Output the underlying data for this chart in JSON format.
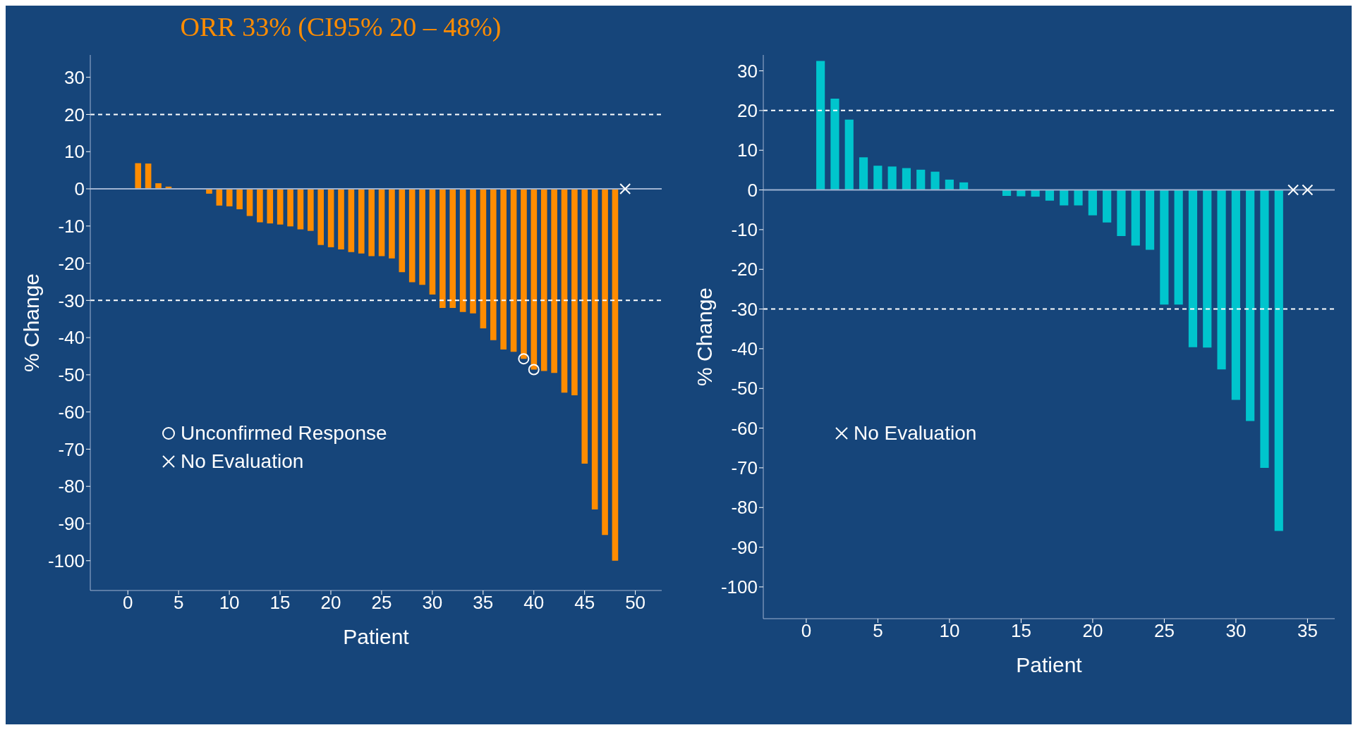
{
  "chart_data": [
    {
      "type": "bar",
      "title": "ORR 33% (CI95% 20 – 48%)",
      "xlabel": "Patient",
      "ylabel": "% Change",
      "legend": "left",
      "grid": false,
      "x": [
        1,
        2,
        3,
        4,
        5,
        6,
        7,
        8,
        9,
        10,
        11,
        12,
        13,
        14,
        15,
        16,
        17,
        18,
        19,
        20,
        21,
        22,
        23,
        24,
        25,
        26,
        27,
        28,
        29,
        30,
        31,
        32,
        33,
        34,
        35,
        36,
        37,
        38,
        39,
        40,
        41,
        42,
        43,
        44,
        45,
        46,
        47,
        48
      ],
      "xlim": [
        -3.7,
        52.6
      ],
      "xticks": [
        0,
        5,
        10,
        15,
        20,
        25,
        30,
        35,
        40,
        45,
        50
      ],
      "ylim": [
        -108,
        36
      ],
      "yticks": [
        -100,
        -90,
        -80,
        -70,
        -60,
        -50,
        -40,
        -30,
        -20,
        -10,
        0,
        10,
        20,
        30
      ],
      "series": [
        {
          "color": "#ff8c00",
          "values": [
            6.9,
            6.8,
            1.5,
            0.6,
            0,
            0,
            0,
            -1.3,
            -4.5,
            -4.7,
            -5.5,
            -7.3,
            -9.0,
            -9.3,
            -9.6,
            -10.1,
            -10.9,
            -11.3,
            -15.1,
            -15.7,
            -16.3,
            -17.0,
            -17.4,
            -18.1,
            -18.1,
            -18.7,
            -22.4,
            -25.1,
            -25.8,
            -28.4,
            -32.0,
            -32.0,
            -33.1,
            -33.5,
            -37.5,
            -40.7,
            -43.2,
            -43.8,
            -45.7,
            -48.6,
            -49.0,
            -49.5,
            -54.8,
            -55.5,
            -73.9,
            -86.2,
            -93.1,
            -100
          ]
        },
        {
          "type": "scatter",
          "name": "Unconfirmed Response",
          "color": "#ffffff",
          "marker": "circle",
          "x": [
            39,
            40
          ],
          "values": [
            -45.7,
            -48.6
          ]
        },
        {
          "type": "scatter",
          "name": "No Evaluation",
          "color": "#ffffff",
          "marker": "cross",
          "x": [
            49
          ],
          "values": [
            0
          ]
        }
      ],
      "ref_lines": [
        {
          "axis": "y",
          "value": 0,
          "color": "#9fb3d1",
          "line_style": "solid"
        },
        {
          "axis": "y",
          "value": 20,
          "color": "#ffffff",
          "line_style": "dashed"
        },
        {
          "axis": "y",
          "value": -30,
          "color": "#ffffff",
          "line_style": "dashed"
        }
      ]
    },
    {
      "type": "bar",
      "xlabel": "Patient",
      "ylabel": "% Change",
      "legend": "left",
      "grid": false,
      "x": [
        1,
        2,
        3,
        4,
        5,
        6,
        7,
        8,
        9,
        10,
        11,
        12,
        13,
        14,
        15,
        16,
        17,
        18,
        19,
        20,
        21,
        22,
        23,
        24,
        25,
        26,
        27,
        28,
        29,
        30,
        31,
        32,
        33
      ],
      "xlim": [
        -3,
        36.9
      ],
      "xticks": [
        0,
        5,
        10,
        15,
        20,
        25,
        30,
        35
      ],
      "ylim": [
        -108,
        34
      ],
      "yticks": [
        -100,
        -90,
        -80,
        -70,
        -60,
        -50,
        -40,
        -30,
        -20,
        -10,
        0,
        10,
        20,
        30
      ],
      "series": [
        {
          "color": "#00c5cd",
          "values": [
            32.5,
            23.0,
            17.7,
            8.2,
            6.1,
            5.9,
            5.5,
            5.1,
            4.6,
            2.6,
            1.9,
            0,
            0,
            -1.5,
            -1.6,
            -1.7,
            -2.7,
            -3.9,
            -3.9,
            -6.4,
            -8.2,
            -11.6,
            -14.0,
            -15.1,
            -28.9,
            -28.9,
            -39.6,
            -39.7,
            -45.2,
            -52.9,
            -58.2,
            -70.0,
            -85.9
          ]
        },
        {
          "type": "scatter",
          "name": "No Evaluation",
          "color": "#ffffff",
          "marker": "cross",
          "x": [
            34,
            35
          ],
          "values": [
            0,
            0
          ]
        }
      ],
      "ref_lines": [
        {
          "axis": "y",
          "value": 0,
          "color": "#9fb3d1",
          "line_style": "solid"
        },
        {
          "axis": "y",
          "value": 20,
          "color": "#ffffff",
          "line_style": "dashed"
        },
        {
          "axis": "y",
          "value": -30,
          "color": "#ffffff",
          "line_style": "dashed"
        }
      ]
    }
  ]
}
